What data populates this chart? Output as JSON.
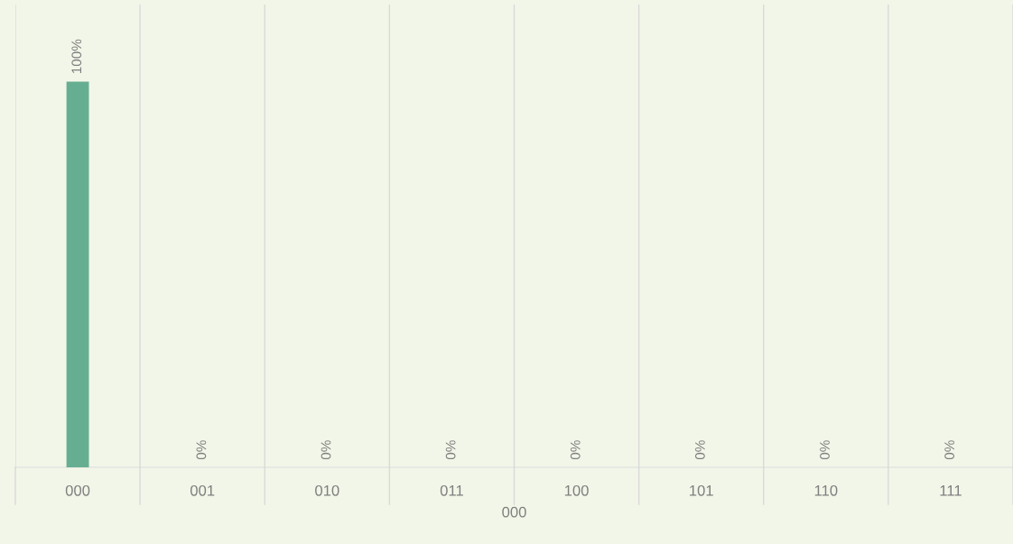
{
  "chart_data": {
    "type": "bar",
    "xlabel": "000",
    "categories": [
      "000",
      "001",
      "010",
      "011",
      "100",
      "101",
      "110",
      "111"
    ],
    "values": [
      100,
      0,
      0,
      0,
      0,
      0,
      0,
      0
    ],
    "value_labels": [
      "100%",
      "0%",
      "0%",
      "0%",
      "0%",
      "0%",
      "0%",
      "0%"
    ],
    "color": "#66ae92",
    "ylim": [
      0,
      120
    ],
    "tick_labels": "x",
    "grid": "x",
    "legend": false
  }
}
